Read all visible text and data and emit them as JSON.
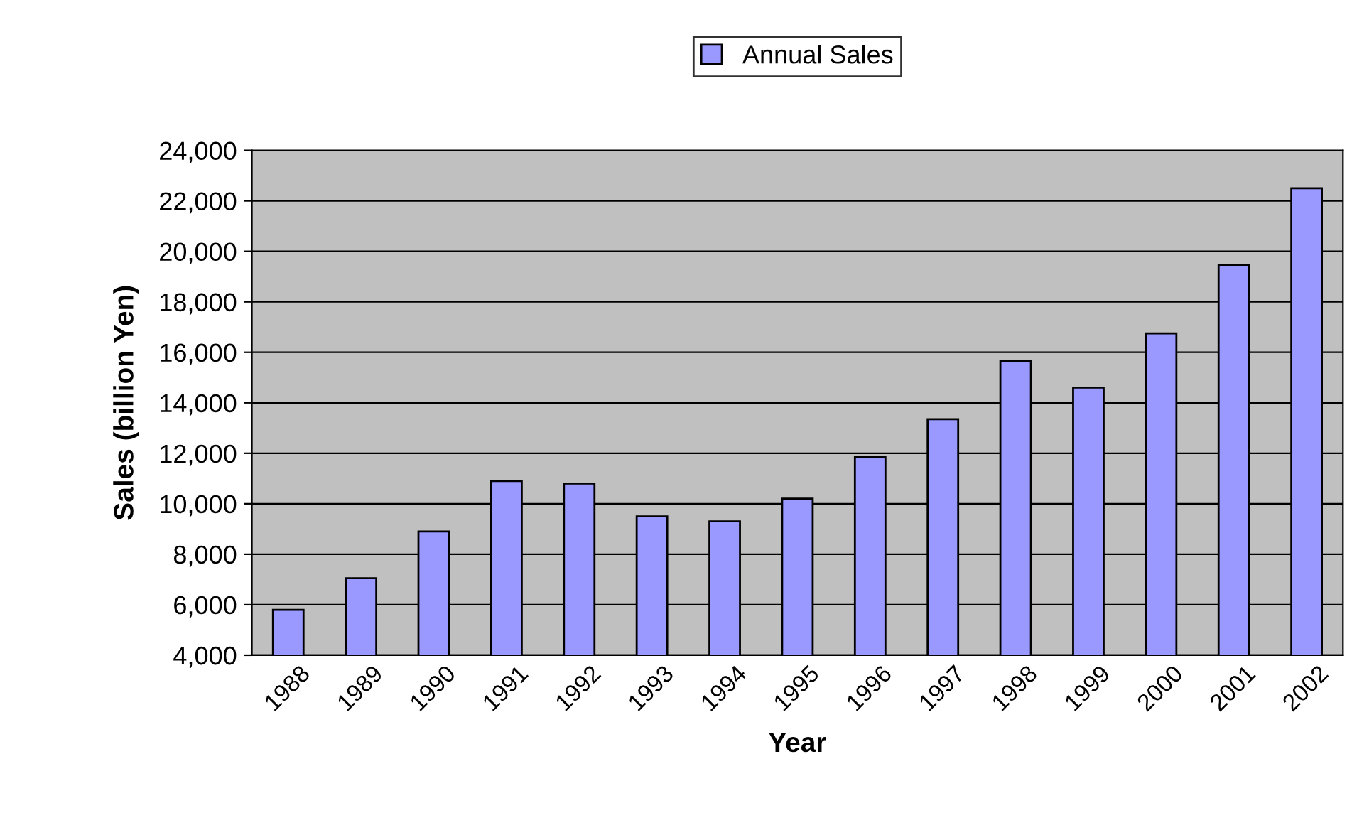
{
  "chart_data": {
    "type": "bar",
    "xlabel": "Year",
    "ylabel": "Sales (billion Yen)",
    "categories": [
      "1988",
      "1989",
      "1990",
      "1991",
      "1992",
      "1993",
      "1994",
      "1995",
      "1996",
      "1997",
      "1998",
      "1999",
      "2000",
      "2001",
      "2002"
    ],
    "series": [
      {
        "name": "Annual Sales",
        "color": "#9999ff",
        "values": [
          5800,
          7050,
          8900,
          10900,
          10800,
          9500,
          9300,
          10200,
          11850,
          13350,
          15650,
          14600,
          16750,
          19450,
          22500
        ]
      }
    ],
    "ylim": [
      4000,
      24000
    ],
    "yticks": [
      {
        "value": 4000,
        "label": "4,000"
      },
      {
        "value": 6000,
        "label": "6,000"
      },
      {
        "value": 8000,
        "label": "8,000"
      },
      {
        "value": 10000,
        "label": "10,000"
      },
      {
        "value": 12000,
        "label": "12,000"
      },
      {
        "value": 14000,
        "label": "14,000"
      },
      {
        "value": 16000,
        "label": "16,000"
      },
      {
        "value": 18000,
        "label": "18,000"
      },
      {
        "value": 20000,
        "label": "20,000"
      },
      {
        "value": 22000,
        "label": "22,000"
      },
      {
        "value": 24000,
        "label": "24,000"
      }
    ],
    "grid": "y",
    "legend": "top"
  }
}
